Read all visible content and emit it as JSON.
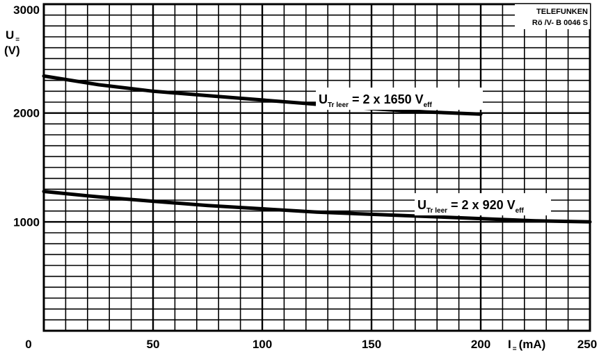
{
  "chart_data": {
    "type": "line",
    "x_range": [
      0,
      250
    ],
    "y_range": [
      0,
      3000
    ],
    "grid": true,
    "x_ticks": [
      "0",
      "50",
      "100",
      "150",
      "200",
      "250"
    ],
    "y_ticks": [
      "1000",
      "2000",
      "3000"
    ],
    "y_label": {
      "main": "U",
      "sub": "=",
      "unit": "(V)"
    },
    "x_label": {
      "main": "I",
      "sub": "=",
      "unit": "(mA)"
    },
    "stamp": {
      "line1": "TELEFUNKEN",
      "line2": "Rö /V- B 0046 S"
    },
    "series": [
      {
        "label": {
          "u": "U",
          "sub": "Tr leer",
          "eq": " = 2 x 1650 V",
          "suffix": "eff"
        },
        "x": [
          0,
          25,
          50,
          75,
          100,
          125,
          150,
          175,
          200
        ],
        "y": [
          2340,
          2260,
          2200,
          2160,
          2120,
          2080,
          2040,
          2010,
          1990
        ]
      },
      {
        "label": {
          "u": "U",
          "sub": "Tr leer",
          "eq": " = 2 x 920 V",
          "suffix": "eff"
        },
        "x": [
          0,
          25,
          50,
          75,
          100,
          125,
          150,
          175,
          200,
          225,
          250
        ],
        "y": [
          1280,
          1230,
          1190,
          1150,
          1120,
          1090,
          1070,
          1050,
          1030,
          1010,
          1000
        ]
      }
    ]
  }
}
